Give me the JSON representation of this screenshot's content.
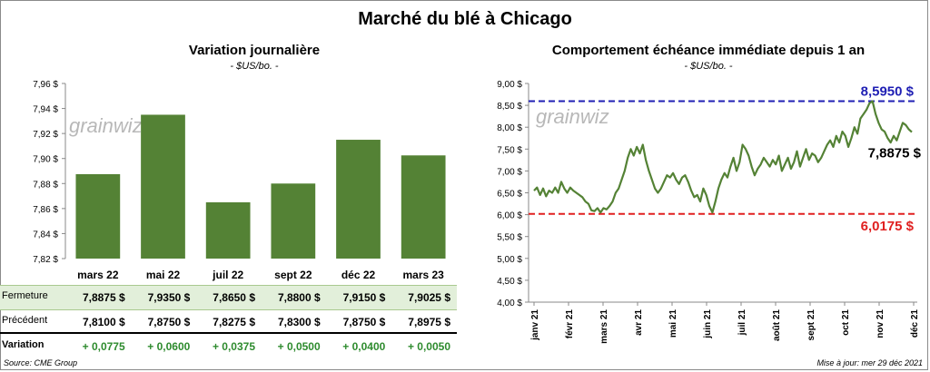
{
  "title": "Marché du blé à Chicago",
  "left_panel": {
    "title": "Variation journalière",
    "subtitle": "- $US/bo. -",
    "watermark": "grainwiz",
    "rows": {
      "fermeture_label": "Fermeture",
      "precedent_label": "Précédent",
      "variation_label": "Variation",
      "fermeture": [
        "7,8875  $",
        "7,9350  $",
        "7,8650  $",
        "7,8800  $",
        "7,9150  $",
        "7,9025  $"
      ],
      "precedent": [
        "7,8100  $",
        "7,8750  $",
        "7,8275  $",
        "7,8300  $",
        "7,8750  $",
        "7,8975  $"
      ],
      "variation": [
        "+ 0,0775",
        "+ 0,0600",
        "+ 0,0375",
        "+ 0,0500",
        "+ 0,0400",
        "+ 0,0050"
      ]
    }
  },
  "right_panel": {
    "title": "Comportement  échéance immédiate depuis 1 an",
    "subtitle": "- $US/bo. -",
    "watermark": "grainwiz",
    "max_label": "8,5950 $",
    "min_label": "6,0175 $",
    "last_label": "7,8875 $"
  },
  "footer": {
    "source": "Source: CME Group",
    "updated": "Mise à jour: mer 29 déc 2021"
  },
  "colors": {
    "bar": "#548235",
    "line": "#548235",
    "max_line": "#1f1fb4",
    "min_line": "#e02020",
    "fermeture_bg": "#e2efda",
    "variation_text": "#2e8b2e"
  },
  "chart_data": [
    {
      "type": "bar",
      "title": "Variation journalière",
      "categories": [
        "mars 22",
        "mai 22",
        "juil 22",
        "sept 22",
        "déc 22",
        "mars 23"
      ],
      "values": [
        7.8875,
        7.935,
        7.865,
        7.88,
        7.915,
        7.9025
      ],
      "ylim": [
        7.82,
        7.96
      ],
      "yticks": [
        "7,82 $",
        "7,84 $",
        "7,86 $",
        "7,88 $",
        "7,90 $",
        "7,92 $",
        "7,94 $",
        "7,96 $"
      ],
      "ytick_values": [
        7.82,
        7.84,
        7.86,
        7.88,
        7.9,
        7.92,
        7.94,
        7.96
      ],
      "grid": false
    },
    {
      "type": "line",
      "title": "Comportement  échéance immédiate depuis 1 an",
      "x_labels": [
        "janv 21",
        "févr 21",
        "mars 21",
        "avr 21",
        "mai 21",
        "juin 21",
        "juil 21",
        "août 21",
        "sept 21",
        "oct 21",
        "nov 21",
        "déc 21"
      ],
      "ylim": [
        4.0,
        9.0
      ],
      "yticks": [
        "4,00 $",
        "4,50 $",
        "5,00 $",
        "5,50 $",
        "6,00 $",
        "6,50 $",
        "7,00 $",
        "7,50 $",
        "8,00 $",
        "8,50 $",
        "9,00 $"
      ],
      "ytick_values": [
        4.0,
        4.5,
        5.0,
        5.5,
        6.0,
        6.5,
        7.0,
        7.5,
        8.0,
        8.5,
        9.0
      ],
      "max_value": 8.595,
      "min_value": 6.0175,
      "last_value": 7.8875,
      "series": [
        {
          "values": [
            6.55,
            6.62,
            6.45,
            6.6,
            6.42,
            6.55,
            6.5,
            6.62,
            6.5,
            6.75,
            6.6,
            6.5,
            6.62,
            6.55,
            6.5,
            6.45,
            6.4,
            6.3,
            6.25,
            6.1,
            6.08,
            6.15,
            6.05,
            6.15,
            6.12,
            6.2,
            6.3,
            6.5,
            6.6,
            6.8,
            7.0,
            7.3,
            7.5,
            7.35,
            7.55,
            7.4,
            7.6,
            7.25,
            7.0,
            6.8,
            6.6,
            6.5,
            6.6,
            6.75,
            6.9,
            6.85,
            6.95,
            6.8,
            6.7,
            6.85,
            6.9,
            6.75,
            6.55,
            6.4,
            6.45,
            6.3,
            6.6,
            6.45,
            6.2,
            6.05,
            6.3,
            6.6,
            6.8,
            6.95,
            6.85,
            7.1,
            7.3,
            7.0,
            7.2,
            7.6,
            7.5,
            7.35,
            7.1,
            6.9,
            7.05,
            7.15,
            7.3,
            7.2,
            7.1,
            7.25,
            7.15,
            7.35,
            7.0,
            7.15,
            7.3,
            7.05,
            7.2,
            7.45,
            7.1,
            7.3,
            7.5,
            7.25,
            7.4,
            7.35,
            7.2,
            7.3,
            7.45,
            7.6,
            7.7,
            7.55,
            7.8,
            7.65,
            7.9,
            7.8,
            7.55,
            7.75,
            8.0,
            7.85,
            8.2,
            8.3,
            8.4,
            8.55,
            8.595,
            8.3,
            8.1,
            7.95,
            7.9,
            7.75,
            7.65,
            7.8,
            7.7,
            7.9,
            8.1,
            8.05,
            7.95,
            7.8875
          ]
        }
      ]
    }
  ]
}
